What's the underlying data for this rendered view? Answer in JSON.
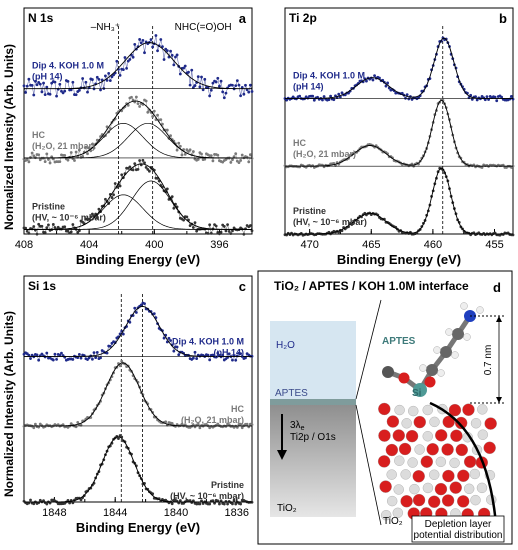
{
  "figure": {
    "ylabel": "Normalized Intensity (Arb. Units)",
    "colors": {
      "dip": "#1f2a8a",
      "hc": "#7a7a7a",
      "pristine": "#333333",
      "fit": "#000000"
    }
  },
  "chart_data": [
    {
      "type": "line",
      "panel": "a",
      "title": "N 1s",
      "xlabel": "Binding Energy (eV)",
      "xlim": [
        408,
        394
      ],
      "xticks": [
        408,
        404,
        400,
        396
      ],
      "annotations": [
        "–NH₃⁺",
        "NHC(=O)OH"
      ],
      "series": [
        {
          "name": "Dip 4. KOH 1.0 M",
          "sub": "(pH 14)",
          "role": "dip",
          "offset": 3.15,
          "peaks": [
            {
              "center": 400.3,
              "amp": 1.0,
              "width": 1.5
            }
          ]
        },
        {
          "name": "HC",
          "sub": "(H₂O, 21 mbar)",
          "role": "hc",
          "offset": 1.65,
          "peaks": [
            {
              "center": 401.9,
              "amp": 0.75,
              "width": 1.2
            },
            {
              "center": 400.4,
              "amp": 0.75,
              "width": 1.2
            }
          ]
        },
        {
          "name": "Pristine",
          "sub": "(HV, ~ 10⁻⁶ mbar)",
          "role": "pristine",
          "offset": 0.1,
          "peaks": [
            {
              "center": 401.9,
              "amp": 0.75,
              "width": 1.2
            },
            {
              "center": 400.2,
              "amp": 1.05,
              "width": 1.2
            }
          ]
        }
      ],
      "vlines": [
        402.2,
        400.1
      ]
    },
    {
      "type": "line",
      "panel": "b",
      "title": "Ti 2p",
      "xlabel": "Binding Energy (eV)",
      "xlim": [
        472,
        453.5
      ],
      "xticks": [
        470,
        465,
        460,
        455
      ],
      "series": [
        {
          "name": "Dip 4. KOH 1.0 M",
          "sub": "(pH 14)",
          "role": "dip",
          "offset": 3.6,
          "peaks": [
            {
              "center": 459.1,
              "amp": 1.6,
              "width": 0.8
            },
            {
              "center": 464.9,
              "amp": 0.55,
              "width": 1.3
            }
          ]
        },
        {
          "name": "HC",
          "sub": "(H₂O, 21 mbar)",
          "role": "hc",
          "offset": 1.8,
          "peaks": [
            {
              "center": 459.3,
              "amp": 1.75,
              "width": 0.75
            },
            {
              "center": 465.1,
              "amp": 0.55,
              "width": 1.3
            }
          ]
        },
        {
          "name": "Pristine",
          "sub": "(HV, ~ 10⁻⁶ mbar)",
          "role": "pristine",
          "offset": 0.0,
          "peaks": [
            {
              "center": 459.3,
              "amp": 1.75,
              "width": 0.75
            },
            {
              "center": 465.1,
              "amp": 0.55,
              "width": 1.3
            }
          ]
        }
      ],
      "vlines": [
        459.2
      ]
    },
    {
      "type": "line",
      "panel": "c",
      "title": "Si 1s",
      "xlabel": "Binding Energy (eV)",
      "xlim": [
        1850,
        1835
      ],
      "xticks": [
        1848,
        1844,
        1840,
        1836
      ],
      "series": [
        {
          "name": "Dip 4. KOH 1.0 M",
          "sub": "(pH 14)",
          "role": "dip",
          "offset": 3.35,
          "peaks": [
            {
              "center": 1842.2,
              "amp": 1.15,
              "width": 1.1
            }
          ]
        },
        {
          "name": "HC",
          "sub": "(H₂O, 21 mbar)",
          "role": "hc",
          "offset": 1.75,
          "peaks": [
            {
              "center": 1843.5,
              "amp": 1.45,
              "width": 1.1
            }
          ]
        },
        {
          "name": "Pristine",
          "sub": "(HV, ~ 10⁻⁶ mbar)",
          "role": "pristine",
          "offset": 0.0,
          "peaks": [
            {
              "center": 1843.8,
              "amp": 1.5,
              "width": 1.05
            }
          ]
        }
      ],
      "vlines": [
        1843.6,
        1842.2
      ]
    }
  ],
  "diagram": {
    "panel": "d",
    "title": "TiO₂ / APTES / KOH 1.0M interface",
    "h2o": "H₂O",
    "aptes_left": "APTES",
    "lambda": "3λ",
    "lambda_sub": "e",
    "lines": "Ti2p / O1s",
    "tio2_left": "TiO₂",
    "aptes_right": "APTES",
    "si": "Si",
    "dim": "0.7 nm",
    "tio2_right": "TiO₂",
    "depletion1": "Depletion layer",
    "depletion2": "potential distribution"
  }
}
